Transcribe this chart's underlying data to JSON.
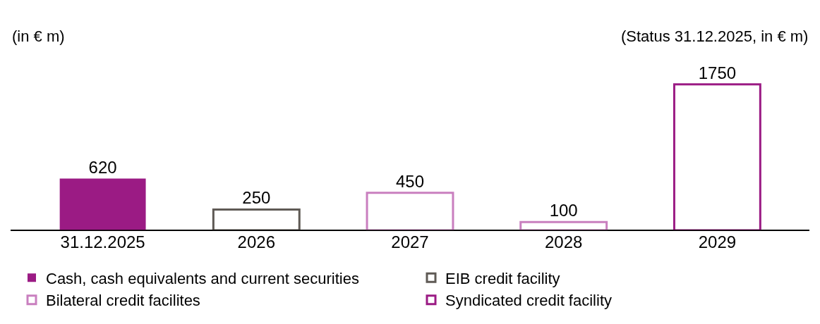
{
  "chart_data": {
    "type": "bar",
    "categories": [
      "31.12.2025",
      "2026",
      "2027",
      "2028",
      "2029"
    ],
    "series": [
      {
        "name": "Cash, cash equivalents and current securities",
        "color": "#9b1b84",
        "values": [
          620,
          null,
          null,
          null,
          null
        ]
      },
      {
        "name": "EIB credit facility",
        "color": "#5f5a55",
        "line_style": "solid",
        "values": [
          null,
          250,
          null,
          null,
          null
        ]
      },
      {
        "name": "Bilateral credit facilites",
        "color": "#c97fbf",
        "line_style": "solid",
        "values": [
          null,
          null,
          450,
          100,
          null
        ]
      },
      {
        "name": "Syndicated credit facility",
        "color": "#9b1b84",
        "line_style": "solid",
        "values": [
          null,
          null,
          null,
          null,
          1750
        ]
      }
    ],
    "data_labels": true,
    "legend": "bottom",
    "annotations": [
      "(in € m)",
      "(Status 31.12.2025, in € m)"
    ]
  }
}
